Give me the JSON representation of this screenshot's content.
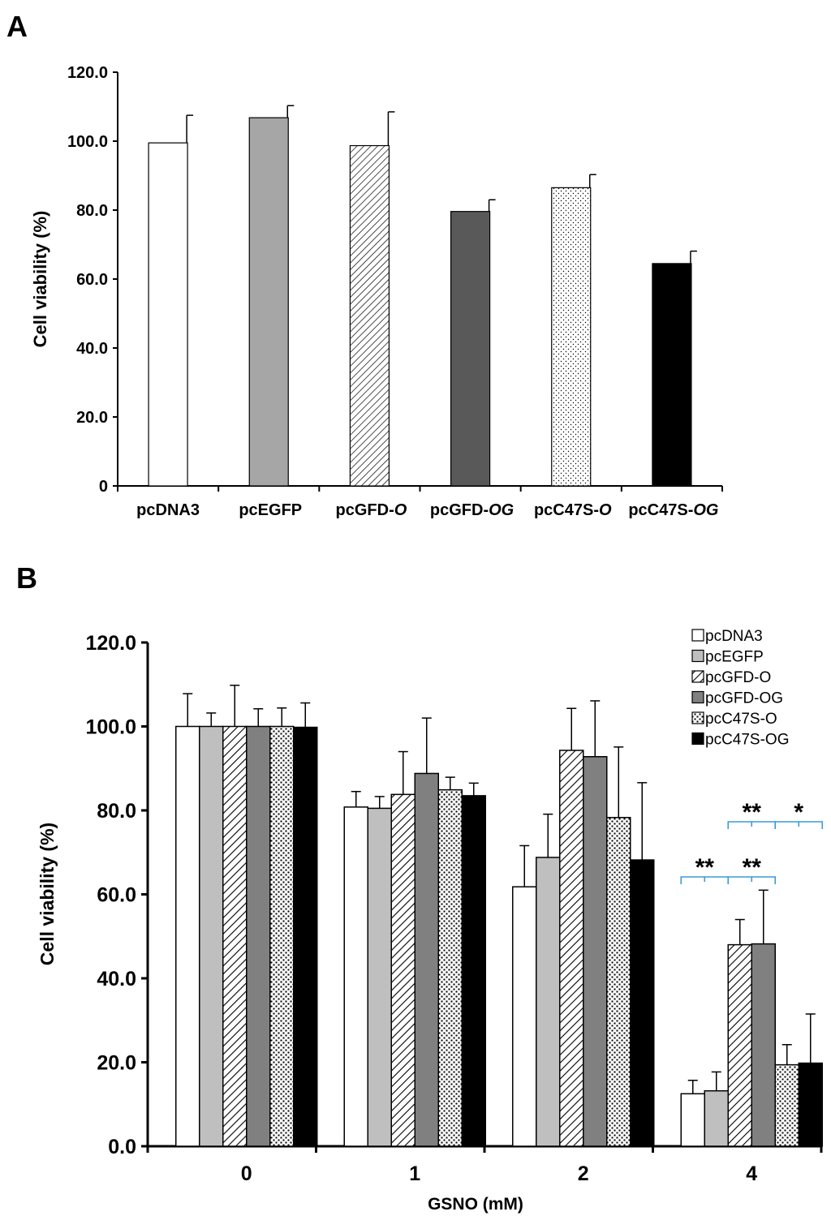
{
  "chart_data": [
    {
      "panel_label": "A",
      "type": "bar",
      "categories": [
        "pcDNA3",
        "pcEGFP",
        "pcGFD-O",
        "pcGFD-OG",
        "pcC47S-O",
        "pcC47S-OG"
      ],
      "category_labels": [
        {
          "base": "pcDNA3",
          "italic": ""
        },
        {
          "base": "pcEGFP",
          "italic": ""
        },
        {
          "base": "pcGFD-",
          "italic": "O"
        },
        {
          "base": "pcGFD-",
          "italic": "OG"
        },
        {
          "base": "pcC47S-",
          "italic": "O"
        },
        {
          "base": "pcC47S-",
          "italic": "OG"
        }
      ],
      "values": [
        99.5,
        106.8,
        98.7,
        79.6,
        86.5,
        64.5
      ],
      "errors": [
        8.0,
        3.5,
        9.8,
        3.4,
        3.8,
        3.6
      ],
      "xlabel": "",
      "ylabel": "Cell viability (%)",
      "ylim": [
        0,
        120
      ],
      "yticks": [
        "0",
        "20.0",
        "40.0",
        "60.0",
        "80.0",
        "100.0",
        "120.0"
      ],
      "legend": "none",
      "grid": false
    },
    {
      "panel_label": "B",
      "type": "bar",
      "categories": [
        "0",
        "1",
        "2",
        "4"
      ],
      "series": [
        {
          "name": "pcDNA3",
          "values": [
            100.0,
            80.8,
            61.8,
            12.5
          ],
          "errors": [
            7.8,
            3.7,
            9.8,
            3.2
          ]
        },
        {
          "name": "pcEGFP",
          "values": [
            100.0,
            80.5,
            68.8,
            13.2
          ],
          "errors": [
            3.2,
            2.8,
            10.3,
            4.5
          ]
        },
        {
          "name": "pcGFD-O",
          "values": [
            100.0,
            83.8,
            94.3,
            48.0
          ],
          "errors": [
            9.8,
            10.2,
            10.0,
            6.0
          ]
        },
        {
          "name": "pcGFD-OG",
          "values": [
            100.0,
            88.8,
            92.8,
            48.2
          ],
          "errors": [
            4.2,
            13.2,
            13.3,
            12.8
          ]
        },
        {
          "name": "pcC47S-O",
          "values": [
            100.0,
            84.9,
            78.3,
            19.4
          ],
          "errors": [
            4.4,
            3.0,
            16.8,
            4.8
          ]
        },
        {
          "name": "pcC47S-OG",
          "values": [
            99.8,
            83.5,
            68.2,
            19.8
          ],
          "errors": [
            5.8,
            3.0,
            18.4,
            11.7
          ]
        }
      ],
      "xlabel": "GSNO (mM)",
      "ylabel": "Cell viability (%)",
      "ylim": [
        0,
        120
      ],
      "yticks": [
        "0.0",
        "20.0",
        "40.0",
        "60.0",
        "80.0",
        "100.0",
        "120.0"
      ],
      "legend": "top-right",
      "grid": false,
      "annotations": [
        {
          "label": "**",
          "group": "4",
          "from_series": 2,
          "to_series": 4
        },
        {
          "label": "*",
          "group": "4",
          "from_series": 4,
          "to_series": 6
        },
        {
          "label": "**",
          "group": "4",
          "from_series": 0,
          "to_series": 2
        },
        {
          "label": "**",
          "group": "4",
          "from_series": 2,
          "to_series": 4
        }
      ]
    }
  ],
  "colors": {
    "axis": "#000000",
    "bracket": "#3a9ad9",
    "fills_a": [
      "#ffffff",
      "#a6a6a6",
      "hatch",
      "#595959",
      "dots",
      "#000000"
    ],
    "fills_b": [
      "#ffffff",
      "#bfbfbf",
      "hatch",
      "#808080",
      "dots",
      "#000000"
    ]
  }
}
